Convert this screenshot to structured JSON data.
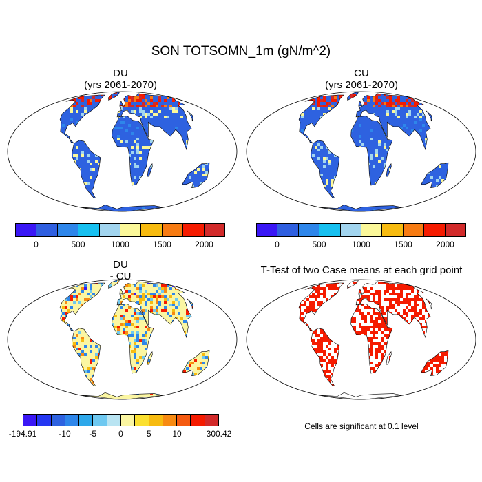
{
  "title": "SON TOTSOMN_1m (gN/m^2)",
  "panels": [
    {
      "name": "DU",
      "subtitle": "(yrs 2061-2070)"
    },
    {
      "name": "CU",
      "subtitle": "(yrs 2061-2070)"
    },
    {
      "name": "DU",
      "subtitle": "- CU"
    },
    {
      "name": "T-Test of two Case means at each grid point",
      "subtitle": ""
    }
  ],
  "colorbar_top": {
    "colors": [
      "#3a17f5",
      "#2f5fe0",
      "#2e86ea",
      "#17c0f0",
      "#a2d5ef",
      "#fbf89a",
      "#f7bb10",
      "#f77b12",
      "#f51b00",
      "#d22a2a"
    ],
    "labels": [
      "0",
      "500",
      "1000",
      "1500",
      "2000"
    ]
  },
  "colorbar_bottom": {
    "colors": [
      "#3a17f5",
      "#2537f2",
      "#2e62e0",
      "#2e86ea",
      "#2ea8ea",
      "#6ec8f0",
      "#b9e4f2",
      "#fbf6a2",
      "#fbe030",
      "#f7bb10",
      "#f78a12",
      "#f55a10",
      "#f51b00",
      "#d22a2a"
    ],
    "labels": [
      "-194.91",
      "-10",
      "-5",
      "0",
      "5",
      "10",
      "300.42"
    ]
  },
  "note": "Cells are significant at 0.1 level",
  "colors": {
    "ocean": "#ffffff",
    "land_high": "#2e62e0",
    "land_diff": "#fbf6a2",
    "sig": "#f51b00"
  }
}
